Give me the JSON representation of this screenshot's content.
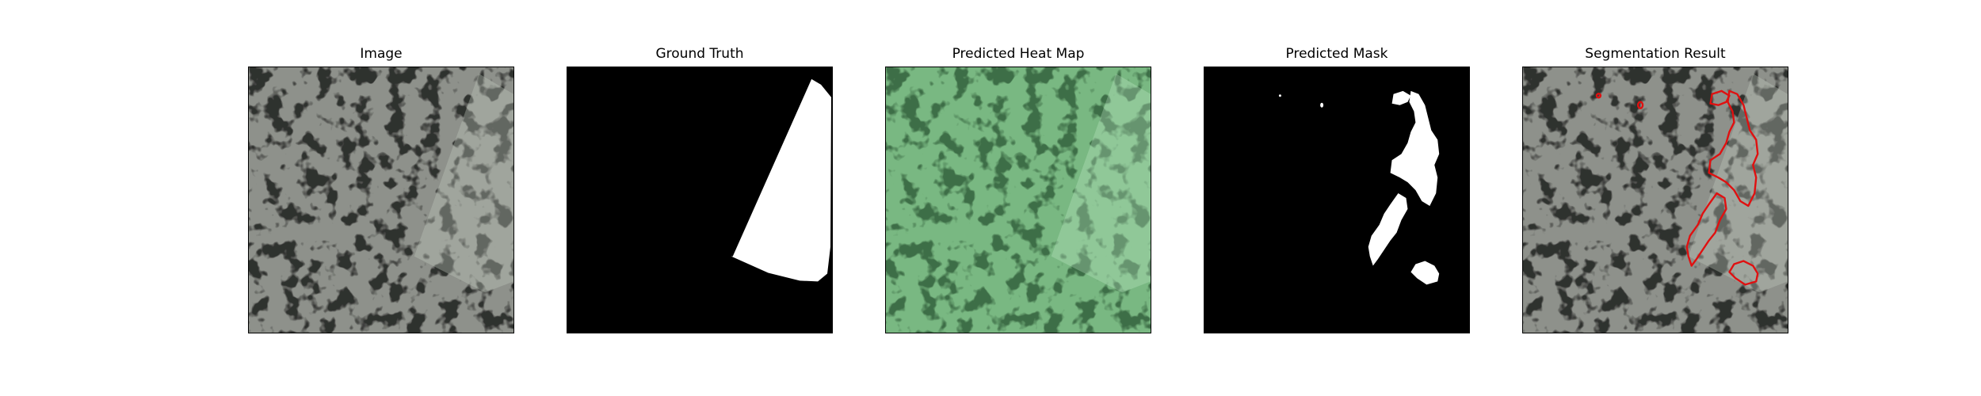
{
  "figure": {
    "panels": [
      {
        "title": "Image"
      },
      {
        "title": "Ground Truth"
      },
      {
        "title": "Predicted Heat Map"
      },
      {
        "title": "Predicted Mask"
      },
      {
        "title": "Segmentation Result"
      }
    ]
  },
  "colors": {
    "background": "#ffffff",
    "texture_base": "#8e918b",
    "texture_spot": "#2f302e",
    "heat_overlay": "#7fd68a",
    "mask_fg": "#ffffff",
    "mask_bg": "#000000",
    "contour": "#e01010"
  }
}
